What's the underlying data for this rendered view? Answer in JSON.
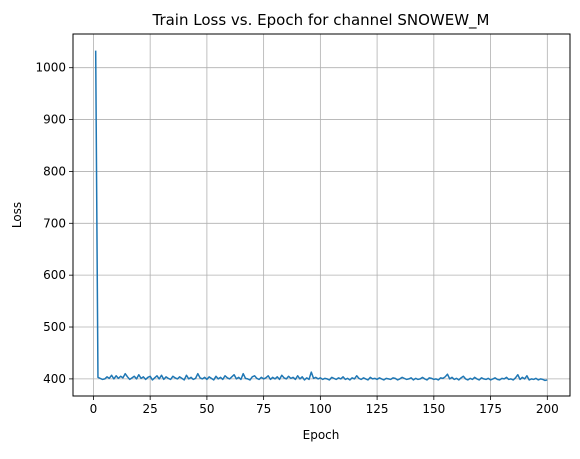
{
  "chart_data": {
    "type": "line",
    "title": "Train Loss vs. Epoch for channel SNOWEW_M",
    "xlabel": "Epoch",
    "ylabel": "Loss",
    "xlim": [
      -9,
      210
    ],
    "ylim": [
      367,
      1065
    ],
    "xticks": [
      0,
      25,
      50,
      75,
      100,
      125,
      150,
      175,
      200
    ],
    "yticks": [
      400,
      500,
      600,
      700,
      800,
      900,
      1000
    ],
    "grid": true,
    "legend": "none",
    "series": [
      {
        "color": "#1f77b4",
        "x": [
          1,
          2,
          3,
          4,
          5,
          6,
          7,
          8,
          9,
          10,
          11,
          12,
          13,
          14,
          15,
          16,
          17,
          18,
          19,
          20,
          21,
          22,
          23,
          24,
          25,
          26,
          27,
          28,
          29,
          30,
          31,
          32,
          33,
          34,
          35,
          36,
          37,
          38,
          39,
          40,
          41,
          42,
          43,
          44,
          45,
          46,
          47,
          48,
          49,
          50,
          51,
          52,
          53,
          54,
          55,
          56,
          57,
          58,
          59,
          60,
          61,
          62,
          63,
          64,
          65,
          66,
          67,
          68,
          69,
          70,
          71,
          72,
          73,
          74,
          75,
          76,
          77,
          78,
          79,
          80,
          81,
          82,
          83,
          84,
          85,
          86,
          87,
          88,
          89,
          90,
          91,
          92,
          93,
          94,
          95,
          96,
          97,
          98,
          99,
          100,
          101,
          102,
          103,
          104,
          105,
          106,
          107,
          108,
          109,
          110,
          111,
          112,
          113,
          114,
          115,
          116,
          117,
          118,
          119,
          120,
          121,
          122,
          123,
          124,
          125,
          126,
          127,
          128,
          129,
          130,
          131,
          132,
          133,
          134,
          135,
          136,
          137,
          138,
          139,
          140,
          141,
          142,
          143,
          144,
          145,
          146,
          147,
          148,
          149,
          150,
          151,
          152,
          153,
          154,
          155,
          156,
          157,
          158,
          159,
          160,
          161,
          162,
          163,
          164,
          165,
          166,
          167,
          168,
          169,
          170,
          171,
          172,
          173,
          174,
          175,
          176,
          177,
          178,
          179,
          180,
          181,
          182,
          183,
          184,
          185,
          186,
          187,
          188,
          189,
          190,
          191,
          192,
          193,
          194,
          195,
          196,
          197,
          198,
          199,
          200
        ],
        "y": [
          1033,
          403,
          401,
          399,
          400,
          404,
          401,
          407,
          400,
          406,
          401,
          405,
          402,
          410,
          404,
          399,
          402,
          405,
          400,
          408,
          401,
          404,
          399,
          403,
          405,
          398,
          402,
          406,
          400,
          407,
          399,
          404,
          401,
          399,
          405,
          402,
          400,
          404,
          401,
          398,
          407,
          400,
          403,
          399,
          401,
          410,
          402,
          400,
          403,
          399,
          404,
          401,
          398,
          405,
          400,
          403,
          399,
          406,
          402,
          400,
          404,
          408,
          400,
          403,
          399,
          410,
          401,
          400,
          398,
          404,
          406,
          401,
          399,
          403,
          400,
          402,
          406,
          399,
          403,
          400,
          404,
          399,
          407,
          402,
          400,
          405,
          401,
          403,
          399,
          406,
          400,
          404,
          398,
          402,
          399,
          413,
          401,
          403,
          400,
          402,
          399,
          401,
          400,
          398,
          403,
          401,
          399,
          402,
          400,
          404,
          399,
          401,
          398,
          402,
          400,
          406,
          401,
          399,
          402,
          400,
          398,
          403,
          400,
          401,
          399,
          402,
          400,
          398,
          401,
          400,
          399,
          402,
          401,
          398,
          400,
          403,
          401,
          399,
          400,
          402,
          398,
          401,
          399,
          400,
          403,
          400,
          398,
          402,
          401,
          399,
          400,
          398,
          402,
          401,
          404,
          409,
          400,
          403,
          399,
          401,
          398,
          402,
          405,
          400,
          398,
          401,
          399,
          403,
          400,
          398,
          402,
          400,
          399,
          401,
          398,
          400,
          402,
          399,
          398,
          401,
          400,
          403,
          399,
          400,
          398,
          402,
          408,
          399,
          403,
          400,
          406,
          398,
          400,
          399,
          401,
          398,
          400,
          399,
          397,
          398
        ]
      }
    ]
  }
}
